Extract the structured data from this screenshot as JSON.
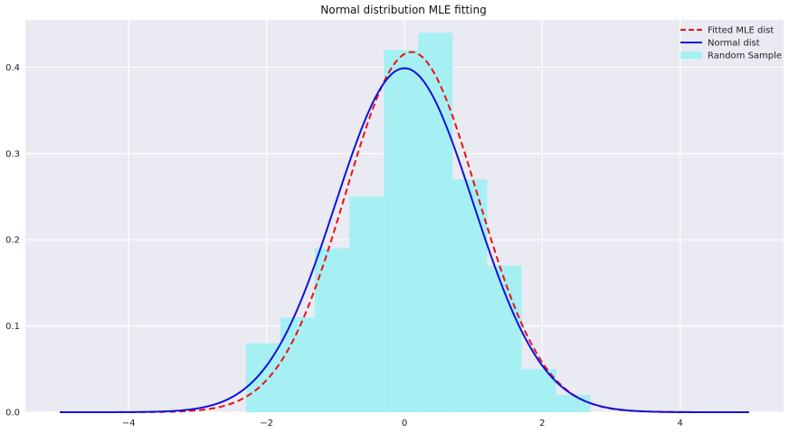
{
  "chart_data": {
    "type": "histogram-with-lines",
    "title": "Normal distribution MLE fitting",
    "xlabel": "",
    "ylabel": "",
    "xlim": [
      -5.5,
      5.5
    ],
    "ylim": [
      0,
      0.455
    ],
    "xticks": [
      -4,
      -2,
      0,
      2,
      4
    ],
    "yticks": [
      0.0,
      0.1,
      0.2,
      0.3,
      0.4
    ],
    "grid": true,
    "legend_position": "top-right",
    "histogram": {
      "name": "Random Sample",
      "color": "#a6f0f4",
      "bins": [
        {
          "x0": -2.3,
          "x1": -1.8,
          "value": 0.08
        },
        {
          "x0": -1.8,
          "x1": -1.3,
          "value": 0.11
        },
        {
          "x0": -1.3,
          "x1": -0.8,
          "value": 0.19
        },
        {
          "x0": -0.8,
          "x1": -0.3,
          "value": 0.25
        },
        {
          "x0": -0.3,
          "x1": 0.2,
          "value": 0.42
        },
        {
          "x0": 0.2,
          "x1": 0.7,
          "value": 0.44
        },
        {
          "x0": 0.7,
          "x1": 1.2,
          "value": 0.27
        },
        {
          "x0": 1.2,
          "x1": 1.7,
          "value": 0.17
        },
        {
          "x0": 1.7,
          "x1": 2.2,
          "value": 0.05
        },
        {
          "x0": 2.2,
          "x1": 2.7,
          "value": 0.02
        }
      ]
    },
    "series": [
      {
        "name": "Fitted MLE dist",
        "color": "#ee1111",
        "style": "dashed",
        "mean": 0.1,
        "std": 0.955
      },
      {
        "name": "Normal dist",
        "color": "#1111dd",
        "style": "solid",
        "mean": 0.0,
        "std": 1.0
      }
    ],
    "x_range": [
      -5,
      5
    ]
  }
}
